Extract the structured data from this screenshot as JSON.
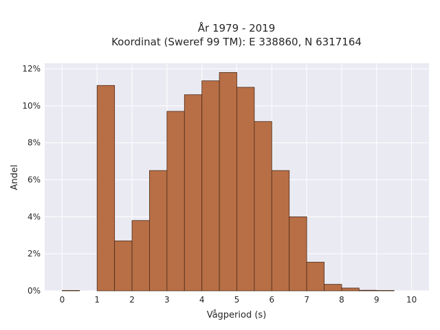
{
  "chart_data": {
    "type": "bar",
    "title_line1": "År 1979 - 2019",
    "title_line2": "Koordinat (Sweref 99 TM): E 338860, N 6317164",
    "xlabel": "Vågperiod (s)",
    "ylabel": "Andel",
    "xlim": [
      -0.5,
      10.5
    ],
    "ylim": [
      0,
      12.3
    ],
    "x_ticks": [
      0,
      1,
      2,
      3,
      4,
      5,
      6,
      7,
      8,
      9,
      10
    ],
    "y_ticks": [
      0,
      2,
      4,
      6,
      8,
      10,
      12
    ],
    "y_tick_labels": [
      "0%",
      "2%",
      "4%",
      "6%",
      "8%",
      "10%",
      "12%"
    ],
    "grid": true,
    "bins": [
      {
        "x0": 0.0,
        "x1": 0.5,
        "value": 0.02
      },
      {
        "x0": 1.0,
        "x1": 1.5,
        "value": 11.1
      },
      {
        "x0": 1.5,
        "x1": 2.0,
        "value": 2.7
      },
      {
        "x0": 2.0,
        "x1": 2.5,
        "value": 3.8
      },
      {
        "x0": 2.5,
        "x1": 3.0,
        "value": 6.5
      },
      {
        "x0": 3.0,
        "x1": 3.5,
        "value": 9.7
      },
      {
        "x0": 3.5,
        "x1": 4.0,
        "value": 10.6
      },
      {
        "x0": 4.0,
        "x1": 4.5,
        "value": 11.35
      },
      {
        "x0": 4.5,
        "x1": 5.0,
        "value": 11.8
      },
      {
        "x0": 5.0,
        "x1": 5.5,
        "value": 11.0
      },
      {
        "x0": 5.5,
        "x1": 6.0,
        "value": 9.15
      },
      {
        "x0": 6.0,
        "x1": 6.5,
        "value": 6.5
      },
      {
        "x0": 6.5,
        "x1": 7.0,
        "value": 4.0
      },
      {
        "x0": 7.0,
        "x1": 7.5,
        "value": 1.55
      },
      {
        "x0": 7.5,
        "x1": 8.0,
        "value": 0.35
      },
      {
        "x0": 8.0,
        "x1": 8.5,
        "value": 0.15
      },
      {
        "x0": 8.5,
        "x1": 9.0,
        "value": 0.03
      },
      {
        "x0": 9.0,
        "x1": 9.5,
        "value": 0.02
      }
    ],
    "colors": {
      "bar_fill": "#b86f46",
      "bar_edge": "#4a2a18",
      "plot_bg": "#eaeaf2",
      "grid": "#ffffff"
    }
  }
}
